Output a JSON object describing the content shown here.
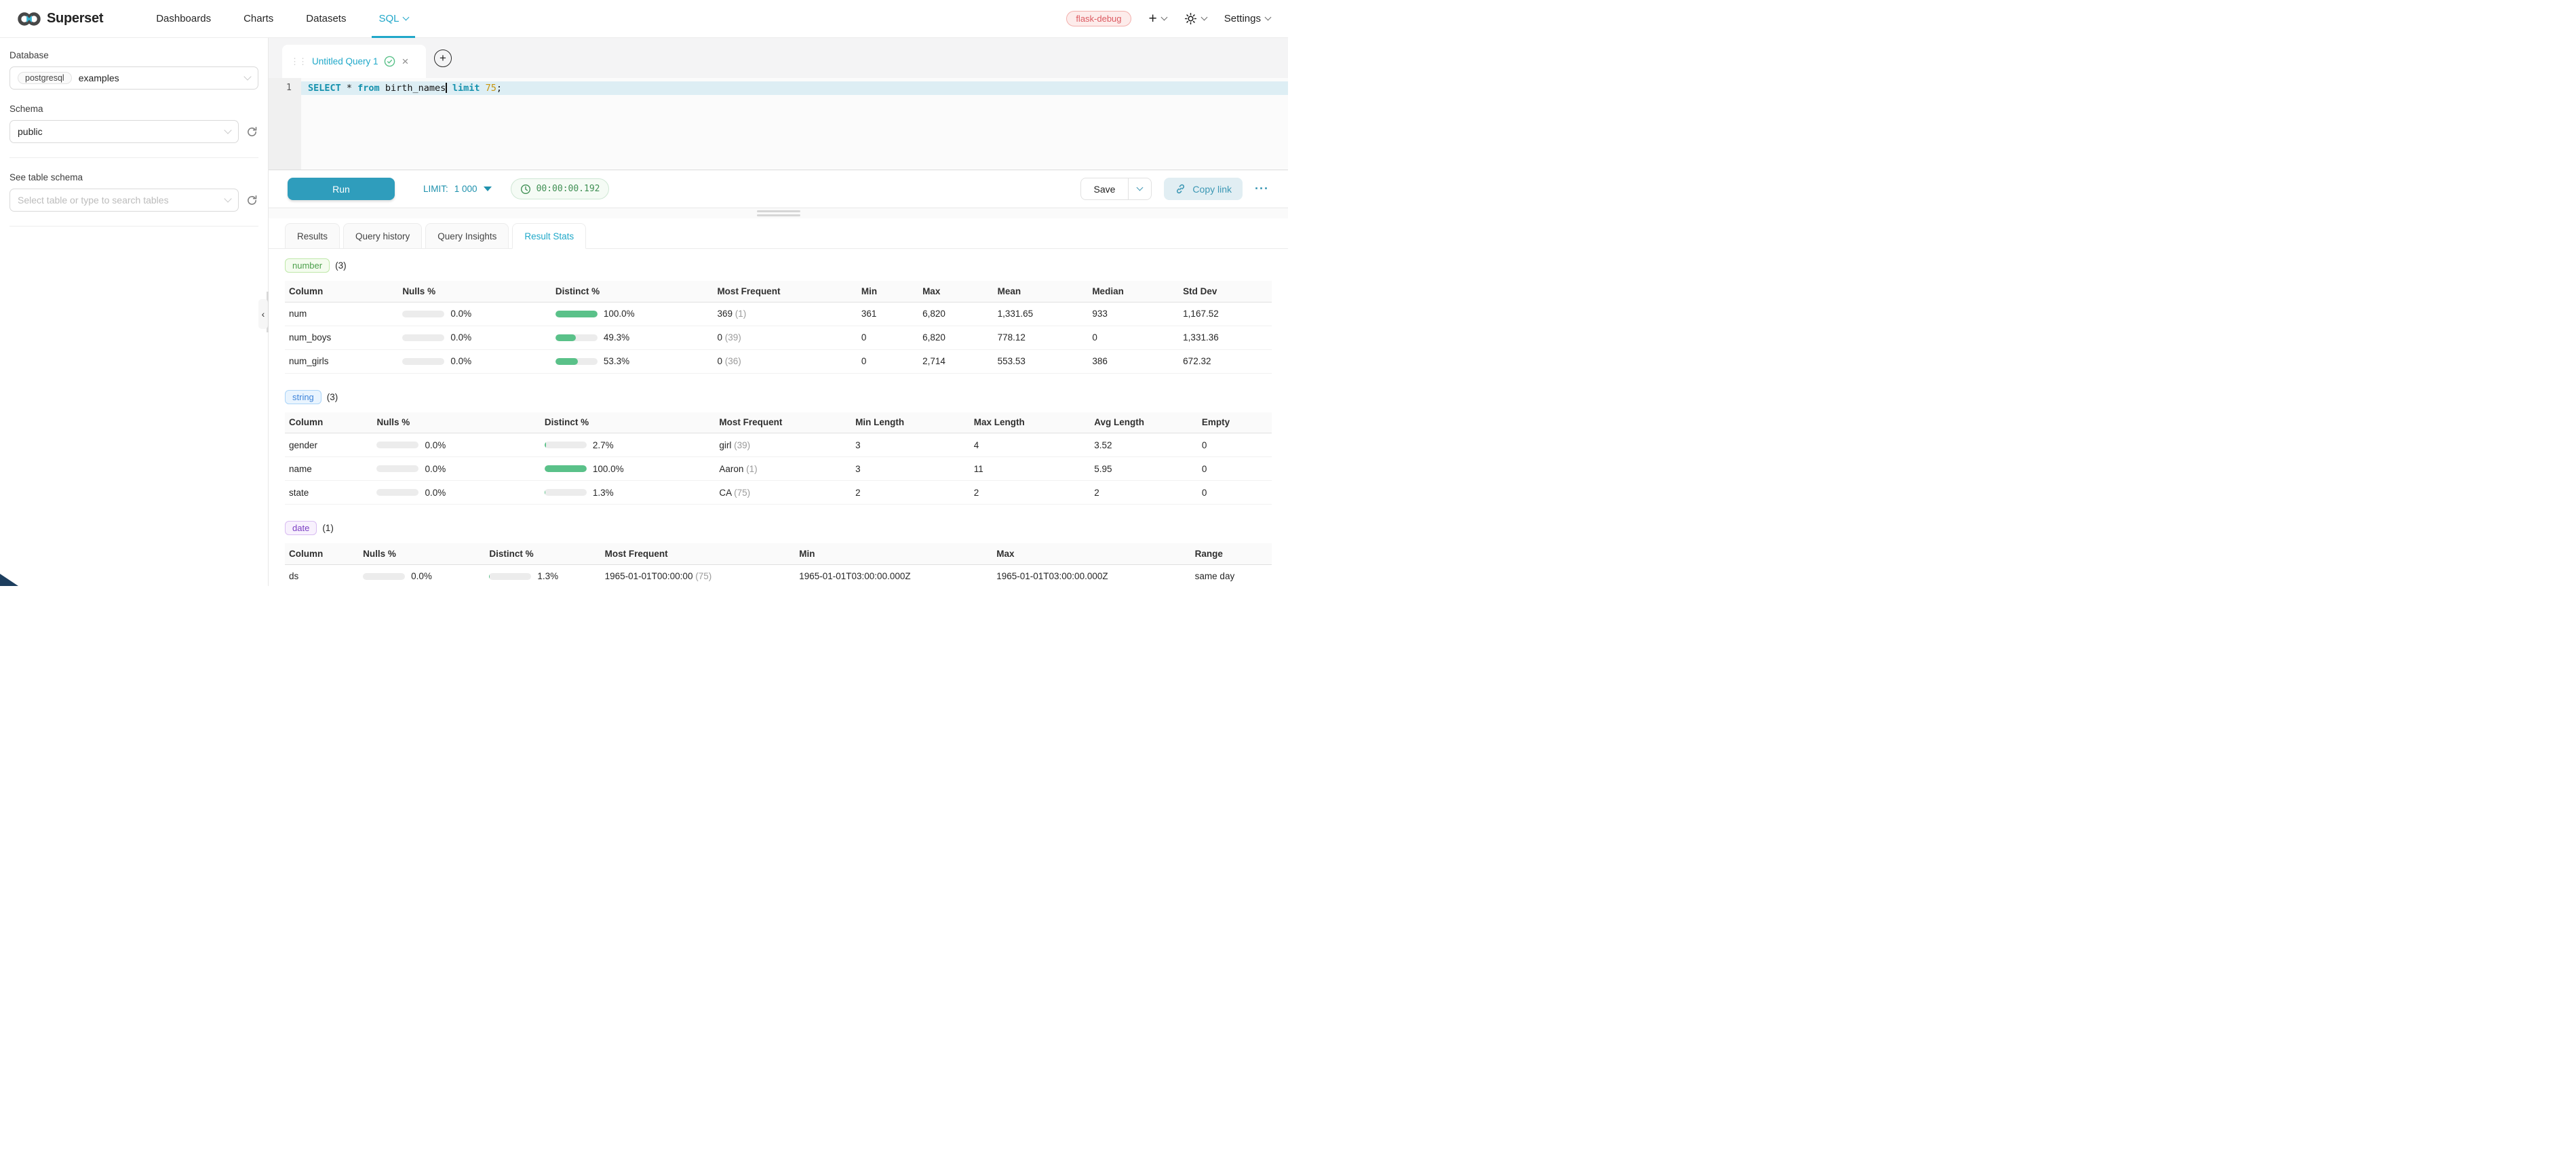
{
  "colors": {
    "accent": "#20a7c9",
    "bar_green": "#5ac189",
    "tag_number": "#4ca04c",
    "tag_string": "#3e84da",
    "tag_date": "#7b3fc4",
    "badge_red": "#dc5a61",
    "timer_green": "#3f8f53"
  },
  "nav": {
    "brand": "Superset",
    "items": [
      "Dashboards",
      "Charts",
      "Datasets",
      "SQL"
    ],
    "active": "SQL",
    "env_badge": "flask-debug",
    "settings_label": "Settings"
  },
  "sidebar": {
    "database_label": "Database",
    "database_type": "postgresql",
    "database_value": "examples",
    "schema_label": "Schema",
    "schema_value": "public",
    "table_label": "See table schema",
    "table_placeholder": "Select table or type to search tables"
  },
  "editor": {
    "tab_title": "Untitled Query 1",
    "new_tab_label": "+",
    "line_number": "1",
    "sql": {
      "kw_select": "SELECT",
      "op": " * ",
      "kw_from": "from",
      "table": " birth_names",
      "kw_limit": " limit",
      "num": " 75",
      "semi": ";"
    },
    "run_label": "Run",
    "limit_label": "LIMIT:",
    "limit_value": "1 000",
    "elapsed": "00:00:00.192",
    "save_label": "Save",
    "copy_link_label": "Copy link",
    "more_label": "···"
  },
  "results": {
    "tabs": [
      "Results",
      "Query history",
      "Query Insights",
      "Result Stats"
    ],
    "active_tab": "Result Stats",
    "sections": [
      {
        "type": "number",
        "count_label": "(3)",
        "columns": [
          "Column",
          "Nulls %",
          "Distinct %",
          "Most Frequent",
          "Min",
          "Max",
          "Mean",
          "Median",
          "Std Dev"
        ],
        "rows": [
          {
            "column": "num",
            "nulls_pct": "0.0%",
            "distinct_pct": "100.0%",
            "most_frequent": "369",
            "most_frequent_count": "(1)",
            "values": [
              "361",
              "6,820",
              "1,331.65",
              "933",
              "1,167.52"
            ]
          },
          {
            "column": "num_boys",
            "nulls_pct": "0.0%",
            "distinct_pct": "49.3%",
            "most_frequent": "0",
            "most_frequent_count": "(39)",
            "values": [
              "0",
              "6,820",
              "778.12",
              "0",
              "1,331.36"
            ]
          },
          {
            "column": "num_girls",
            "nulls_pct": "0.0%",
            "distinct_pct": "53.3%",
            "most_frequent": "0",
            "most_frequent_count": "(36)",
            "values": [
              "0",
              "2,714",
              "553.53",
              "386",
              "672.32"
            ]
          }
        ]
      },
      {
        "type": "string",
        "count_label": "(3)",
        "columns": [
          "Column",
          "Nulls %",
          "Distinct %",
          "Most Frequent",
          "Min Length",
          "Max Length",
          "Avg Length",
          "Empty"
        ],
        "rows": [
          {
            "column": "gender",
            "nulls_pct": "0.0%",
            "distinct_pct": "2.7%",
            "most_frequent": "girl",
            "most_frequent_count": "(39)",
            "values": [
              "3",
              "4",
              "3.52",
              "0"
            ]
          },
          {
            "column": "name",
            "nulls_pct": "0.0%",
            "distinct_pct": "100.0%",
            "most_frequent": "Aaron",
            "most_frequent_count": "(1)",
            "values": [
              "3",
              "11",
              "5.95",
              "0"
            ]
          },
          {
            "column": "state",
            "nulls_pct": "0.0%",
            "distinct_pct": "1.3%",
            "most_frequent": "CA",
            "most_frequent_count": "(75)",
            "values": [
              "2",
              "2",
              "2",
              "0"
            ]
          }
        ]
      },
      {
        "type": "date",
        "count_label": "(1)",
        "columns": [
          "Column",
          "Nulls %",
          "Distinct %",
          "Most Frequent",
          "Min",
          "Max",
          "Range"
        ],
        "rows": [
          {
            "column": "ds",
            "nulls_pct": "0.0%",
            "distinct_pct": "1.3%",
            "most_frequent": "1965-01-01T00:00:00",
            "most_frequent_count": "(75)",
            "values": [
              "1965-01-01T03:00:00.000Z",
              "1965-01-01T03:00:00.000Z",
              "same day"
            ]
          }
        ]
      }
    ]
  }
}
